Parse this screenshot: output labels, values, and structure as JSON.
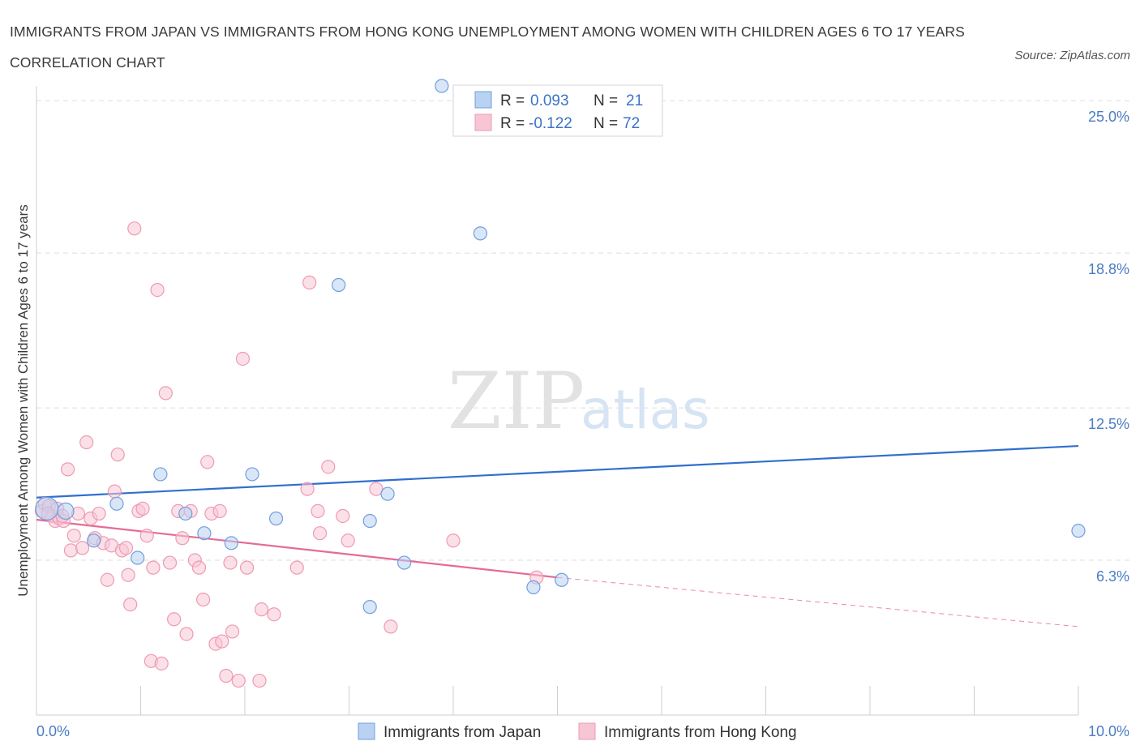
{
  "title": "IMMIGRANTS FROM JAPAN VS IMMIGRANTS FROM HONG KONG UNEMPLOYMENT AMONG WOMEN WITH CHILDREN AGES 6 TO 17 YEARS CORRELATION CHART",
  "source": "Source: ZipAtlas.com",
  "watermark": {
    "zip": "ZIP",
    "atlas": "atlas"
  },
  "legend": {
    "japan": {
      "r_label": "R =",
      "r_value": "0.093",
      "n_label": "N =",
      "n_value": "21"
    },
    "hongkong": {
      "r_label": "R =",
      "r_value": "-0.122",
      "n_label": "N =",
      "n_value": "72"
    }
  },
  "bottom_legend": {
    "japan": "Immigrants from Japan",
    "hongkong": "Immigrants from Hong Kong"
  },
  "colors": {
    "japan_fill": "#b9d2f2",
    "japan_stroke": "#6f9fdc",
    "japan_line": "#2f6fce",
    "hk_fill": "#f7c6d5",
    "hk_stroke": "#ee9ab4",
    "hk_line": "#e66a97",
    "grid": "#dddddd",
    "axis_text": "#4a7cc4"
  },
  "chart_data": {
    "type": "scatter",
    "title": "IMMIGRANTS FROM JAPAN VS IMMIGRANTS FROM HONG KONG UNEMPLOYMENT AMONG WOMEN WITH CHILDREN AGES 6 TO 17 YEARS CORRELATION CHART",
    "xlabel": "",
    "ylabel": "Unemployment Among Women with Children Ages 6 to 17 years",
    "xlim": [
      0,
      10
    ],
    "ylim": [
      0,
      25.6
    ],
    "x_tick_labels": [
      {
        "value": 0,
        "label": "0.0%"
      },
      {
        "value": 10,
        "label": "10.0%"
      }
    ],
    "y_ticks": [
      {
        "value": 6.3,
        "label": "6.3%"
      },
      {
        "value": 12.5,
        "label": "12.5%"
      },
      {
        "value": 18.8,
        "label": "18.8%"
      },
      {
        "value": 25.0,
        "label": "25.0%"
      }
    ],
    "series": [
      {
        "name": "Immigrants from Japan",
        "points": [
          [
            0.1,
            8.4
          ],
          [
            0.28,
            8.3
          ],
          [
            0.55,
            7.1
          ],
          [
            0.77,
            8.6
          ],
          [
            0.97,
            6.4
          ],
          [
            1.19,
            9.8
          ],
          [
            1.43,
            8.2
          ],
          [
            1.61,
            7.4
          ],
          [
            1.87,
            7.0
          ],
          [
            2.07,
            9.8
          ],
          [
            2.3,
            8.0
          ],
          [
            2.9,
            17.5
          ],
          [
            3.2,
            4.4
          ],
          [
            3.2,
            7.9
          ],
          [
            3.37,
            9.0
          ],
          [
            3.53,
            6.2
          ],
          [
            3.89,
            25.6
          ],
          [
            4.26,
            19.6
          ],
          [
            4.77,
            5.2
          ],
          [
            5.04,
            5.5
          ],
          [
            10.0,
            7.5
          ]
        ],
        "sizes": [
          14,
          10,
          8,
          8,
          8,
          8,
          8,
          8,
          8,
          8,
          8,
          8,
          8,
          8,
          8,
          8,
          8,
          8,
          8,
          8,
          8
        ],
        "trend": {
          "x": [
            0,
            10
          ],
          "y": [
            8.85,
            10.95
          ]
        }
      },
      {
        "name": "Immigrants from Hong Kong",
        "points": [
          [
            0.05,
            8.3
          ],
          [
            0.08,
            8.6
          ],
          [
            0.12,
            8.5
          ],
          [
            0.15,
            8.1
          ],
          [
            0.18,
            7.9
          ],
          [
            0.2,
            8.4
          ],
          [
            0.22,
            8.0
          ],
          [
            0.26,
            7.9
          ],
          [
            0.3,
            10.0
          ],
          [
            0.33,
            6.7
          ],
          [
            0.36,
            7.3
          ],
          [
            0.4,
            8.2
          ],
          [
            0.44,
            6.8
          ],
          [
            0.48,
            11.1
          ],
          [
            0.52,
            8.0
          ],
          [
            0.56,
            7.2
          ],
          [
            0.6,
            8.2
          ],
          [
            0.64,
            7.0
          ],
          [
            0.68,
            5.5
          ],
          [
            0.72,
            6.9
          ],
          [
            0.75,
            9.1
          ],
          [
            0.78,
            10.6
          ],
          [
            0.82,
            6.7
          ],
          [
            0.86,
            6.8
          ],
          [
            0.88,
            5.7
          ],
          [
            0.9,
            4.5
          ],
          [
            0.94,
            19.8
          ],
          [
            0.98,
            8.3
          ],
          [
            1.02,
            8.4
          ],
          [
            1.06,
            7.3
          ],
          [
            1.1,
            2.2
          ],
          [
            1.12,
            6.0
          ],
          [
            1.16,
            17.3
          ],
          [
            1.2,
            2.1
          ],
          [
            1.24,
            13.1
          ],
          [
            1.28,
            6.2
          ],
          [
            1.32,
            3.9
          ],
          [
            1.36,
            8.3
          ],
          [
            1.4,
            7.2
          ],
          [
            1.44,
            3.3
          ],
          [
            1.48,
            8.3
          ],
          [
            1.52,
            6.3
          ],
          [
            1.56,
            6.0
          ],
          [
            1.6,
            4.7
          ],
          [
            1.64,
            10.3
          ],
          [
            1.68,
            8.2
          ],
          [
            1.72,
            2.9
          ],
          [
            1.76,
            8.3
          ],
          [
            1.78,
            3.0
          ],
          [
            1.82,
            1.6
          ],
          [
            1.86,
            6.2
          ],
          [
            1.88,
            3.4
          ],
          [
            1.94,
            1.4
          ],
          [
            1.98,
            14.5
          ],
          [
            2.02,
            6.0
          ],
          [
            2.14,
            1.4
          ],
          [
            2.16,
            4.3
          ],
          [
            2.28,
            4.1
          ],
          [
            2.5,
            6.0
          ],
          [
            2.6,
            9.2
          ],
          [
            2.62,
            17.6
          ],
          [
            2.7,
            8.3
          ],
          [
            2.72,
            7.4
          ],
          [
            2.8,
            10.1
          ],
          [
            2.94,
            8.1
          ],
          [
            2.99,
            7.1
          ],
          [
            3.26,
            9.2
          ],
          [
            3.4,
            3.6
          ],
          [
            4.0,
            7.1
          ],
          [
            4.8,
            5.6
          ],
          [
            0.11,
            8.2
          ],
          [
            0.25,
            8.1
          ]
        ],
        "trend": {
          "x": [
            0,
            5.0
          ],
          "y": [
            7.95,
            5.6
          ]
        },
        "trend_dashed": {
          "x": [
            5.0,
            10
          ],
          "y": [
            5.6,
            3.6
          ]
        }
      }
    ]
  }
}
